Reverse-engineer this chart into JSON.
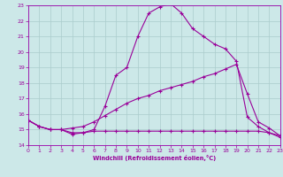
{
  "xlabel": "Windchill (Refroidissement éolien,°C)",
  "background_color": "#cce8e8",
  "grid_color": "#aacccc",
  "line_color": "#990099",
  "spine_color": "#9900aa",
  "xlim": [
    0,
    23
  ],
  "ylim": [
    14,
    23
  ],
  "yticks": [
    14,
    15,
    16,
    17,
    18,
    19,
    20,
    21,
    22,
    23
  ],
  "xticks": [
    0,
    1,
    2,
    3,
    4,
    5,
    6,
    7,
    8,
    9,
    10,
    11,
    12,
    13,
    14,
    15,
    16,
    17,
    18,
    19,
    20,
    21,
    22,
    23
  ],
  "curve1_x": [
    0,
    1,
    2,
    3,
    4,
    5,
    6,
    7,
    8,
    9,
    10,
    11,
    12,
    13,
    14,
    15,
    16,
    17,
    18,
    19,
    20,
    21,
    22,
    23
  ],
  "curve1_y": [
    15.6,
    15.2,
    15.0,
    15.0,
    14.7,
    14.8,
    15.0,
    16.5,
    18.5,
    19.0,
    21.0,
    22.5,
    22.9,
    23.1,
    22.5,
    21.5,
    21.0,
    20.5,
    20.2,
    19.4,
    15.8,
    15.2,
    14.8,
    14.5
  ],
  "curve2_x": [
    0,
    1,
    2,
    3,
    4,
    5,
    6,
    7,
    8,
    9,
    10,
    11,
    12,
    13,
    14,
    15,
    16,
    17,
    18,
    19,
    20,
    21,
    22,
    23
  ],
  "curve2_y": [
    15.6,
    15.2,
    15.0,
    15.0,
    15.1,
    15.2,
    15.5,
    15.9,
    16.3,
    16.7,
    17.0,
    17.2,
    17.5,
    17.7,
    17.9,
    18.1,
    18.4,
    18.6,
    18.9,
    19.2,
    17.3,
    15.5,
    15.1,
    14.6
  ],
  "curve3_x": [
    0,
    1,
    2,
    3,
    4,
    5,
    6,
    7,
    8,
    9,
    10,
    11,
    12,
    13,
    14,
    15,
    16,
    17,
    18,
    19,
    20,
    21,
    22,
    23
  ],
  "curve3_y": [
    15.6,
    15.2,
    15.0,
    15.0,
    14.8,
    14.8,
    14.9,
    14.9,
    14.9,
    14.9,
    14.9,
    14.9,
    14.9,
    14.9,
    14.9,
    14.9,
    14.9,
    14.9,
    14.9,
    14.9,
    14.9,
    14.9,
    14.8,
    14.6
  ]
}
